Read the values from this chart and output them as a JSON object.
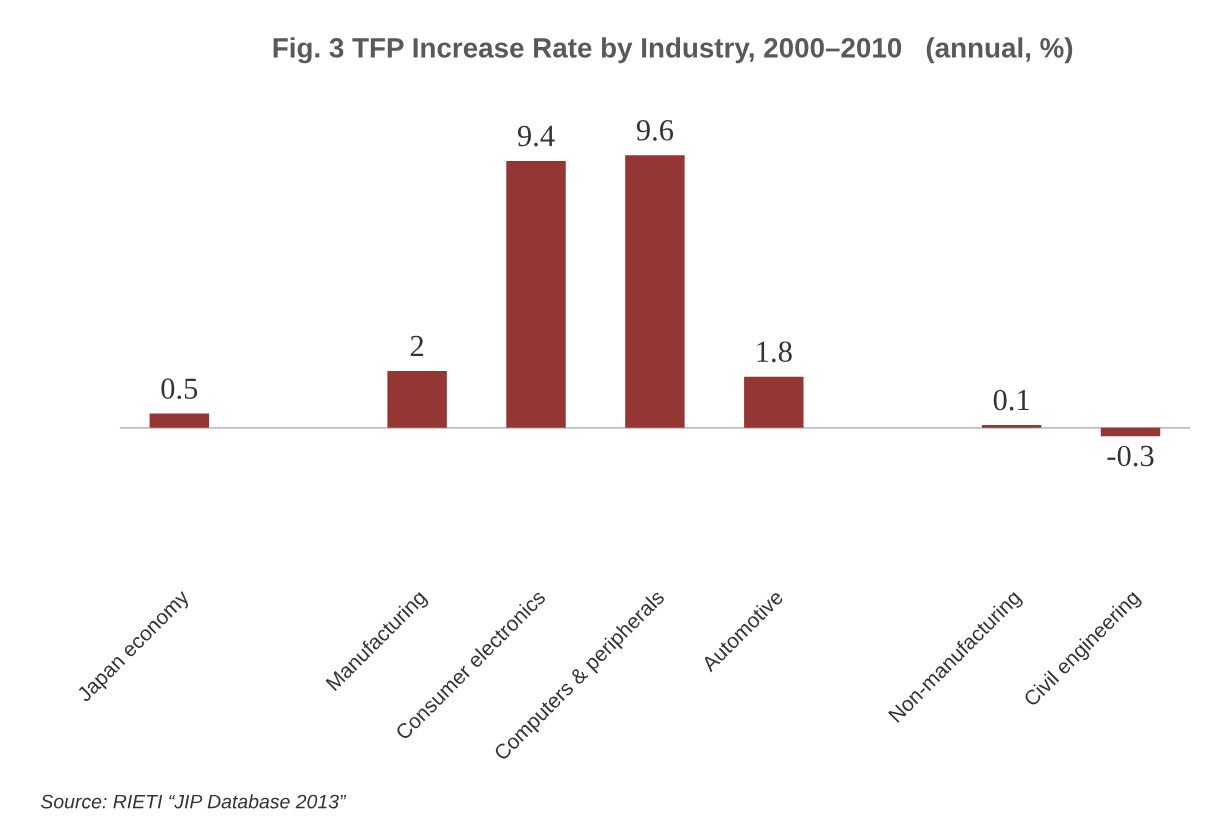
{
  "chart_data": {
    "type": "bar",
    "title": "Fig. 3 TFP Increase Rate by Industry, 2000–2010   (annual, %)",
    "categories": [
      "Japan economy",
      null,
      "Manufacturing",
      "Consumer electronics",
      "Computers & peripherals",
      "Automotive",
      null,
      "Non-manufacturing",
      "Civil engineering"
    ],
    "values": [
      0.5,
      null,
      2,
      9.4,
      9.6,
      1.8,
      null,
      0.1,
      -0.3
    ],
    "color": "#943634",
    "data_labels": true,
    "grid": false,
    "legend": false,
    "tick_labels": "x",
    "annotations": [
      "Source: RIETI “JIP Database 2013”"
    ]
  }
}
